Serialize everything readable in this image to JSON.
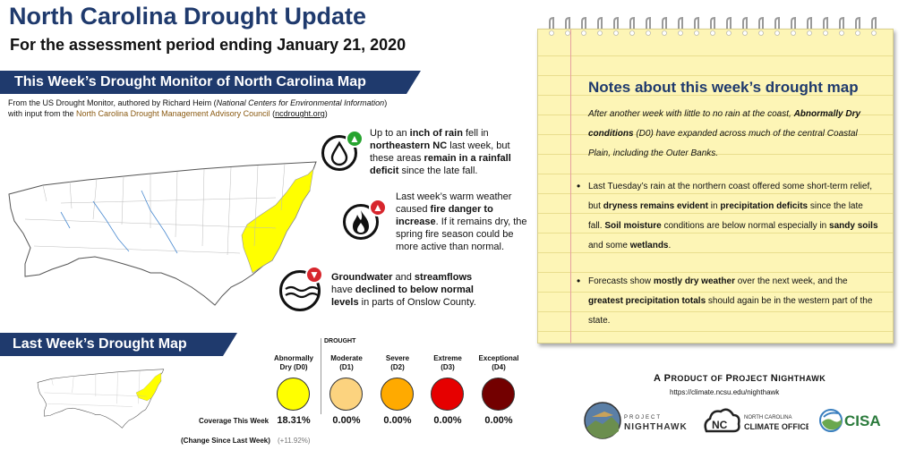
{
  "header": {
    "title": "North Carolina Drought Update",
    "subtitle": "For the assessment period ending January 21, 2020"
  },
  "this_week": {
    "banner": "This Week’s Drought Monitor of North Carolina Map",
    "credit_line1_a": "From the US Drought Monitor, authored by Richard Heim (",
    "credit_line1_b": "National Centers for Environmental Information",
    "credit_line1_c": ")",
    "credit_line2_a": "with input from the ",
    "credit_line2_b": "North Carolina Drought Management Advisory Council",
    "credit_line2_c": " (",
    "credit_line2_d": "ncdrought.org",
    "credit_line2_e": ")"
  },
  "callouts": [
    {
      "icon": "raindrop-icon",
      "badge": "up-arrow",
      "p1": "Up to an ",
      "b1": "inch of rain",
      "p2": " fell in ",
      "b2": "northeastern NC",
      "p3": " last week, but these areas ",
      "b3": "remain in a rainfall deficit",
      "p4": " since the late fall."
    },
    {
      "icon": "fire-icon",
      "badge": "up-arrow",
      "p1": "Last week’s warm weather caused ",
      "b1": "fire danger to increase",
      "p2": ". If it remains dry, the spring fire season could be more active than normal."
    },
    {
      "icon": "water-level-icon",
      "badge": "down-arrow",
      "b1": "Groundwater",
      "p1": " and ",
      "b2": "streamflows",
      "p2": " have ",
      "b3": "declined to below normal levels",
      "p3": " in parts of Onslow County."
    }
  ],
  "last_week": {
    "banner": "Last Week’s Drought Map"
  },
  "legend": {
    "drought_header": "DROUGHT",
    "coverage_label": "Coverage This Week",
    "change_label": "(Change Since Last Week)",
    "categories": [
      {
        "name": "Abnormally Dry (D0)",
        "line1": "Abnormally",
        "line2": "Dry (D0)",
        "color": "#ffff00",
        "coverage": "18.31%",
        "change": "(+11.92%)"
      },
      {
        "name": "Moderate (D1)",
        "line1": "Moderate",
        "line2": "(D1)",
        "color": "#fcd37f",
        "coverage": "0.00%"
      },
      {
        "name": "Severe (D2)",
        "line1": "Severe",
        "line2": "(D2)",
        "color": "#ffaa00",
        "coverage": "0.00%"
      },
      {
        "name": "Extreme (D3)",
        "line1": "Extreme",
        "line2": "(D3)",
        "color": "#e60000",
        "coverage": "0.00%"
      },
      {
        "name": "Exceptional (D4)",
        "line1": "Exceptional",
        "line2": "(D4)",
        "color": "#730000",
        "coverage": "0.00%"
      }
    ]
  },
  "notes": {
    "title": "Notes about this week’s drought map",
    "intro_a": "After another week with little to no rain at the coast, ",
    "intro_b": "Abnormally Dry conditions",
    "intro_c": " (D0) have expanded across much of the central Coastal Plain, including the Outer Banks.",
    "bullet1_a": "Last Tuesday’s rain at the northern coast offered some short-term relief, but ",
    "bullet1_b": "dryness remains evident",
    "bullet1_c": " in ",
    "bullet1_d": "precipitation deficits",
    "bullet1_e": " since the late fall. ",
    "bullet1_f": "Soil moisture",
    "bullet1_g": " conditions are below normal especially in ",
    "bullet1_h": "sandy soils",
    "bullet1_i": " and some ",
    "bullet1_j": "wetlands",
    "bullet1_k": ".",
    "bullet2_a": "Forecasts show ",
    "bullet2_b": "mostly dry weather",
    "bullet2_c": " over the next week, and the ",
    "bullet2_d": "greatest precipitation totals",
    "bullet2_e": " should again be in the western part of the state."
  },
  "footer": {
    "product_a": "A P",
    "product_b": "RODUCT OF ",
    "product_c": "P",
    "product_d": "ROJECT ",
    "product_e": "N",
    "product_f": "IGHTHAWK",
    "url": "https://climate.ncsu.edu/nighthawk",
    "logo_nighthawk_a": "PROJECT",
    "logo_nighthawk_b": "NIGHTHAWK",
    "logo_ncco_a": "NORTH CAROLINA",
    "logo_ncco_b": "CLIMATE OFFICE",
    "logo_cisa": "CISA"
  }
}
